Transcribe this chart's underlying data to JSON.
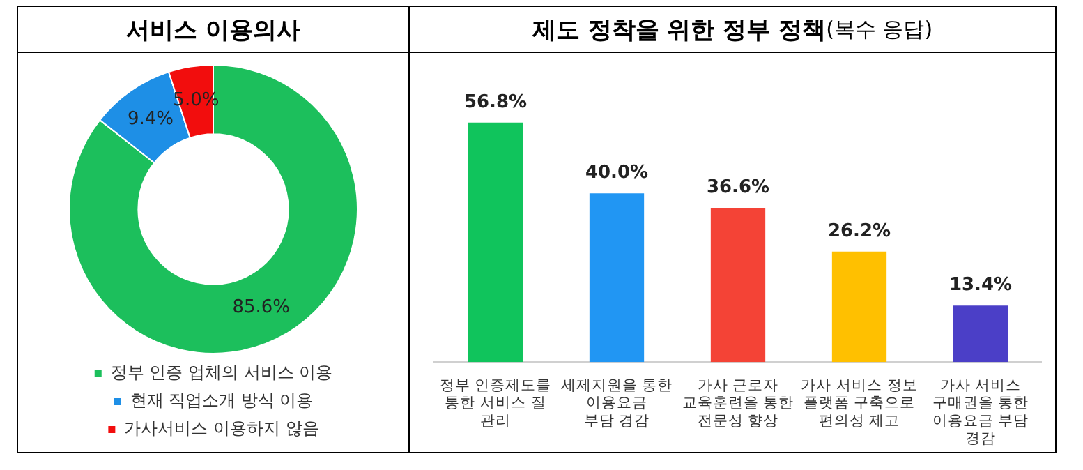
{
  "chart_data": [
    {
      "type": "donut",
      "title": "서비스 이용의사",
      "categories": [
        "정부 인증 업체의 서비스 이용",
        "현재 직업소개 방식 이용",
        "가사서비스 이용하지 않음"
      ],
      "values": [
        85.6,
        9.4,
        5.0
      ],
      "value_labels": [
        "85.6%",
        "9.4%",
        "5.0%"
      ],
      "colors": [
        "#1cbf5c",
        "#1e8fe6",
        "#f20d0d"
      ],
      "legend": "bottom"
    },
    {
      "type": "bar",
      "title": "제도 정착을 위한 정부 정책",
      "subtitle": "(복수 응답)",
      "categories": [
        "정부 인증제도를\n통한 서비스 질\n관리",
        "세제지원을 통한\n이용요금\n부담 경감",
        "가사 근로자\n교육훈련을 통한\n전문성 향상",
        "가사 서비스 정보\n플랫폼 구축으로\n편의성 제고",
        "가사 서비스\n구매권을 통한\n이용요금 부담\n경감"
      ],
      "values": [
        56.8,
        40.0,
        36.6,
        26.2,
        13.4
      ],
      "value_labels": [
        "56.8%",
        "40.0%",
        "36.6%",
        "26.2%",
        "13.4%"
      ],
      "colors": [
        "#10c45c",
        "#2196f3",
        "#f44336",
        "#ffc000",
        "#4b3fc7"
      ],
      "relative": false
    }
  ]
}
